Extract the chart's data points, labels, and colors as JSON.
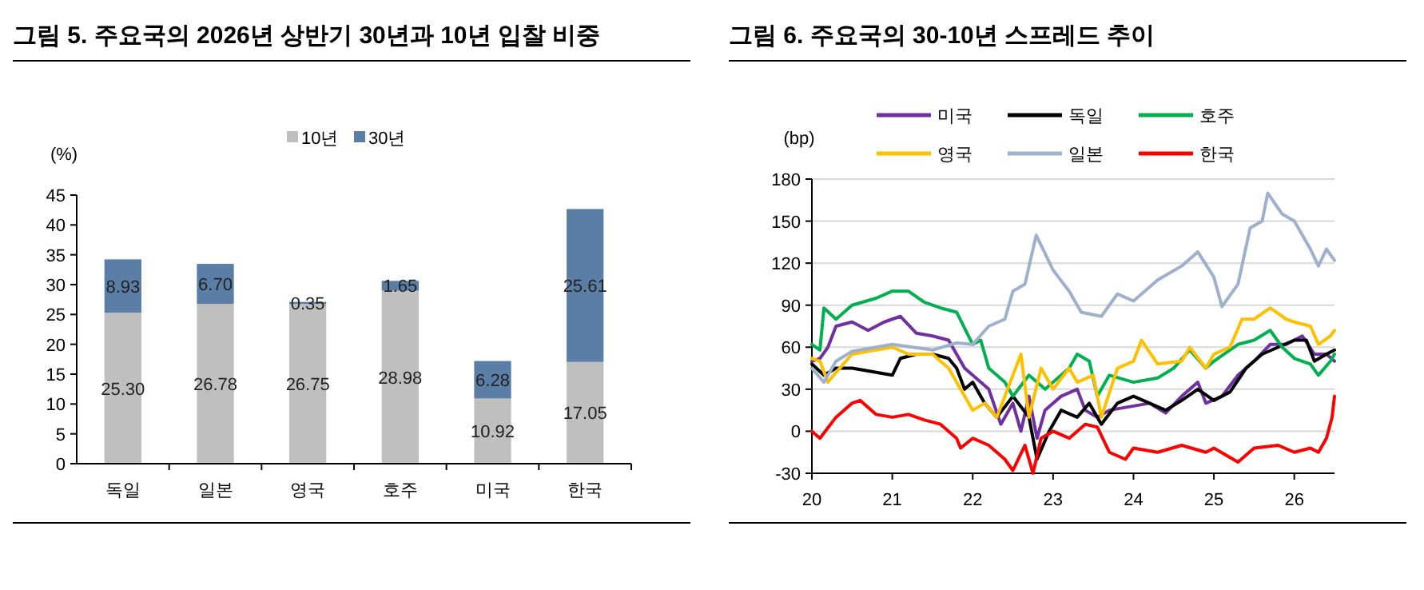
{
  "chart_data": [
    {
      "type": "bar",
      "stacked": true,
      "title": "그림 5. 주요국의 2026년 상반기 30년과 10년 입찰 비중",
      "ylabel": "(%)",
      "categories": [
        "독일",
        "일본",
        "영국",
        "호주",
        "미국",
        "한국"
      ],
      "ylim": [
        0,
        45
      ],
      "yticks": [
        0,
        5,
        10,
        15,
        20,
        25,
        30,
        35,
        40,
        45
      ],
      "legend": "top",
      "grid": false,
      "series": [
        {
          "name": "10년",
          "color": "#bfbfbf",
          "values": [
            25.3,
            26.78,
            26.75,
            28.98,
            10.92,
            17.05
          ],
          "value_labels": [
            "25.30",
            "26.78",
            "26.75",
            "28.98",
            "10.92",
            "17.05"
          ]
        },
        {
          "name": "30년",
          "color": "#5b7ea7",
          "values": [
            8.93,
            6.7,
            0.35,
            1.65,
            6.28,
            25.61
          ],
          "value_labels": [
            "8.93",
            "6.70",
            "0.35",
            "1.65",
            "6.28",
            "25.61"
          ]
        }
      ]
    },
    {
      "type": "line",
      "title": "그림 6. 주요국의 30-10년 스프레드 추이",
      "ylabel": "(bp)",
      "xlim": [
        20,
        26.5
      ],
      "xticks": [
        20,
        21,
        22,
        23,
        24,
        25,
        26
      ],
      "ylim": [
        -30,
        180
      ],
      "yticks": [
        -30,
        0,
        30,
        60,
        90,
        120,
        150,
        180
      ],
      "grid": "y",
      "legend": "top",
      "line_style": "solid",
      "marker": "none",
      "series": [
        {
          "name": "미국",
          "color": "#7030a0",
          "x": [
            20,
            20.1,
            20.2,
            20.3,
            20.5,
            20.7,
            20.9,
            21.1,
            21.3,
            21.5,
            21.7,
            21.8,
            21.9,
            22,
            22.2,
            22.35,
            22.5,
            22.6,
            22.7,
            22.8,
            22.9,
            23.1,
            23.3,
            23.4,
            23.55,
            23.7,
            24,
            24.2,
            24.4,
            24.6,
            24.8,
            24.9,
            25.1,
            25.3,
            25.5,
            25.7,
            25.9,
            26.1,
            26.25,
            26.4,
            26.5
          ],
          "values": [
            50,
            52,
            60,
            75,
            78,
            72,
            78,
            82,
            70,
            68,
            65,
            55,
            45,
            40,
            30,
            5,
            20,
            0,
            25,
            -5,
            15,
            25,
            30,
            15,
            10,
            15,
            18,
            20,
            13,
            25,
            35,
            20,
            25,
            40,
            50,
            62,
            62,
            68,
            55,
            55,
            50
          ]
        },
        {
          "name": "독일",
          "color": "#000000",
          "x": [
            20,
            20.15,
            20.3,
            20.5,
            20.8,
            21,
            21.1,
            21.3,
            21.5,
            21.7,
            21.8,
            21.9,
            22,
            22.15,
            22.3,
            22.5,
            22.7,
            22.8,
            22.95,
            23.1,
            23.3,
            23.45,
            23.6,
            23.8,
            24,
            24.2,
            24.4,
            24.6,
            24.8,
            25,
            25.2,
            25.4,
            25.6,
            25.8,
            26,
            26.15,
            26.25,
            26.4,
            26.5
          ],
          "values": [
            48,
            40,
            45,
            45,
            42,
            40,
            52,
            55,
            55,
            52,
            45,
            30,
            35,
            20,
            10,
            25,
            10,
            -20,
            0,
            15,
            10,
            20,
            5,
            20,
            25,
            20,
            15,
            22,
            30,
            22,
            28,
            45,
            55,
            60,
            65,
            65,
            50,
            55,
            58
          ]
        },
        {
          "name": "호주",
          "color": "#00b050",
          "x": [
            20,
            20.1,
            20.15,
            20.3,
            20.5,
            20.8,
            21,
            21.2,
            21.4,
            21.6,
            21.8,
            22,
            22.1,
            22.2,
            22.4,
            22.5,
            22.7,
            22.9,
            23,
            23.2,
            23.3,
            23.45,
            23.55,
            23.7,
            24,
            24.3,
            24.5,
            24.7,
            24.9,
            25,
            25.3,
            25.5,
            25.7,
            25.85,
            26,
            26.2,
            26.3,
            26.45,
            26.5
          ],
          "values": [
            62,
            58,
            88,
            80,
            90,
            95,
            100,
            100,
            92,
            88,
            85,
            62,
            65,
            45,
            35,
            25,
            40,
            30,
            35,
            45,
            55,
            50,
            25,
            40,
            35,
            38,
            45,
            58,
            45,
            50,
            62,
            65,
            72,
            60,
            52,
            48,
            40,
            50,
            55
          ]
        },
        {
          "name": "영국",
          "color": "#ffc000",
          "x": [
            20,
            20.1,
            20.2,
            20.3,
            20.5,
            20.8,
            21,
            21.2,
            21.5,
            21.7,
            21.85,
            22,
            22.15,
            22.3,
            22.5,
            22.6,
            22.7,
            22.85,
            23,
            23.2,
            23.3,
            23.5,
            23.6,
            23.8,
            24,
            24.1,
            24.3,
            24.6,
            24.7,
            24.9,
            25,
            25.2,
            25.35,
            25.5,
            25.7,
            25.9,
            26,
            26.2,
            26.3,
            26.45,
            26.5
          ],
          "values": [
            52,
            50,
            35,
            42,
            55,
            58,
            60,
            55,
            55,
            45,
            30,
            15,
            20,
            10,
            40,
            55,
            10,
            45,
            30,
            45,
            35,
            40,
            10,
            45,
            50,
            65,
            48,
            50,
            60,
            45,
            55,
            60,
            80,
            80,
            88,
            80,
            78,
            75,
            62,
            68,
            72
          ]
        },
        {
          "name": "일본",
          "color": "#9fb0cc",
          "x": [
            20,
            20.15,
            20.3,
            20.5,
            21,
            21.5,
            21.8,
            22,
            22.2,
            22.4,
            22.5,
            22.65,
            22.79,
            23,
            23.2,
            23.35,
            23.6,
            23.8,
            24,
            24.3,
            24.6,
            24.8,
            25,
            25.1,
            25.3,
            25.45,
            25.6,
            25.67,
            25.85,
            26,
            26.2,
            26.3,
            26.4,
            26.5
          ],
          "values": [
            45,
            35,
            50,
            57,
            62,
            58,
            63,
            62,
            75,
            80,
            100,
            105,
            140,
            115,
            100,
            85,
            82,
            98,
            93,
            108,
            118,
            128,
            110,
            89,
            105,
            145,
            150,
            170,
            155,
            150,
            130,
            118,
            130,
            122
          ]
        },
        {
          "name": "한국",
          "color": "#ff0000",
          "x": [
            20,
            20.1,
            20.3,
            20.5,
            20.6,
            20.8,
            21,
            21.2,
            21.4,
            21.6,
            21.8,
            21.85,
            22,
            22.2,
            22.4,
            22.5,
            22.65,
            22.75,
            22.85,
            23,
            23.2,
            23.4,
            23.55,
            23.7,
            23.9,
            24,
            24.3,
            24.6,
            24.9,
            25,
            25.3,
            25.5,
            25.8,
            26,
            26.2,
            26.3,
            26.4,
            26.47,
            26.5
          ],
          "values": [
            0,
            -5,
            10,
            20,
            22,
            12,
            10,
            12,
            8,
            5,
            -5,
            -12,
            -5,
            -10,
            -20,
            -28,
            -10,
            -30,
            -5,
            0,
            -5,
            5,
            3,
            -15,
            -20,
            -12,
            -15,
            -10,
            -15,
            -12,
            -22,
            -12,
            -10,
            -15,
            -12,
            -15,
            -5,
            10,
            25
          ]
        }
      ]
    }
  ]
}
